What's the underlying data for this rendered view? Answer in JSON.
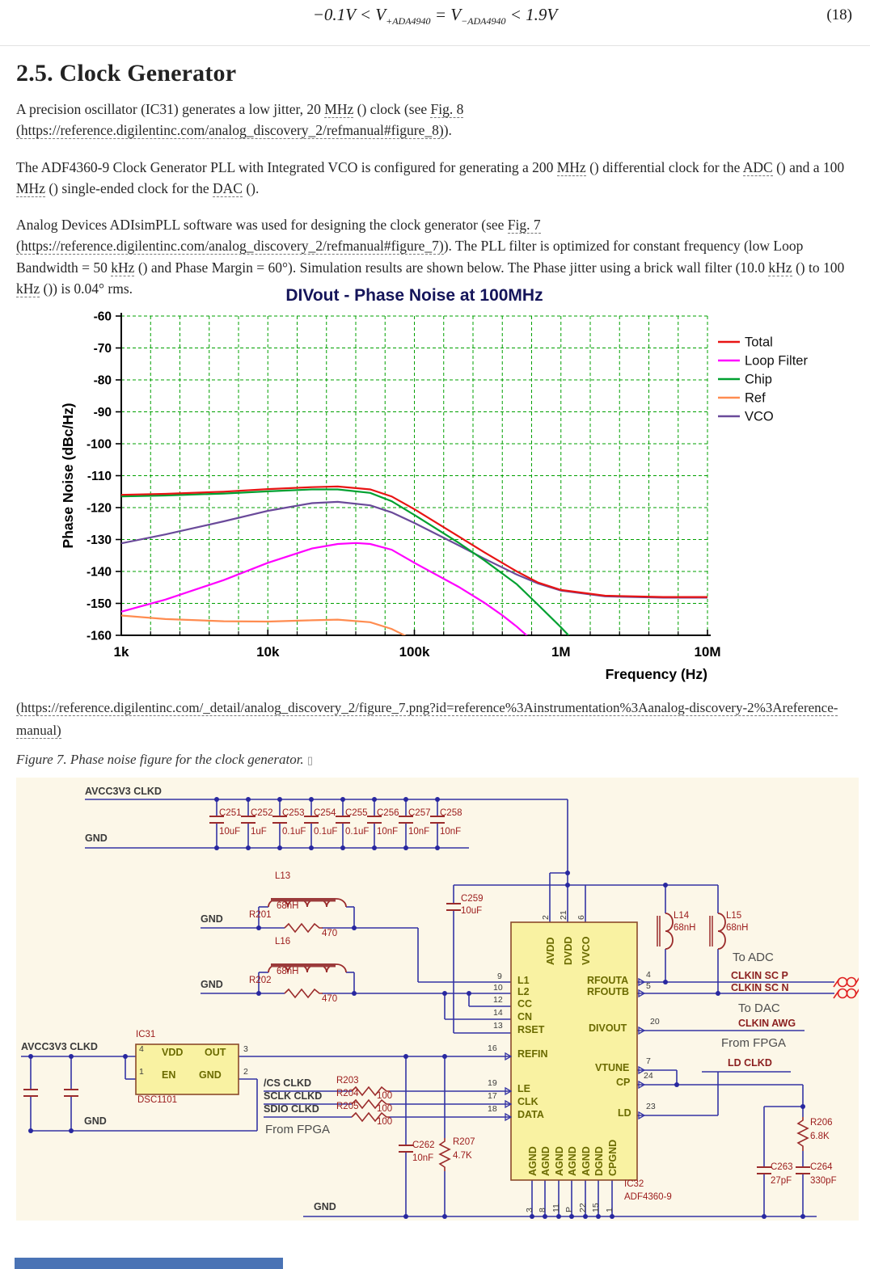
{
  "equation": {
    "parts": [
      {
        "t": "−0.1V < V"
      },
      {
        "t": "+ADA4940",
        "sub": true
      },
      {
        "t": " = V"
      },
      {
        "t": "−ADA4940",
        "sub": true
      },
      {
        "t": " < 1.9V"
      }
    ],
    "number": "(18)"
  },
  "heading": "2.5. Clock Generator",
  "paragraphs": [
    [
      {
        "t": "A precision oscillator (IC31) generates a low jitter, 20 "
      },
      {
        "t": "MHz",
        "s": "term"
      },
      {
        "t": " () clock (see "
      },
      {
        "t": "Fig. 8 (https://reference.digilentinc.com/analog_discovery_2/refmanual#figure_8)",
        "s": "link"
      },
      {
        "t": ")."
      }
    ],
    [
      {
        "t": "The ADF4360-9 Clock Generator PLL with Integrated VCO is configured for generating a 200 "
      },
      {
        "t": "MHz",
        "s": "term"
      },
      {
        "t": " () differential clock for the "
      },
      {
        "t": "ADC",
        "s": "term"
      },
      {
        "t": " () and a 100 "
      },
      {
        "t": "MHz",
        "s": "term"
      },
      {
        "t": " () single-ended clock for the "
      },
      {
        "t": "DAC",
        "s": "term"
      },
      {
        "t": " ()."
      }
    ],
    [
      {
        "t": "Analog Devices ADIsimPLL software was used for designing the clock generator (see "
      },
      {
        "t": "Fig. 7 (https://reference.digilentinc.com/analog_discovery_2/refmanual#figure_7)",
        "s": "link"
      },
      {
        "t": "). The PLL filter is optimized for constant frequency (low Loop Bandwidth = 50 "
      },
      {
        "t": "kHz",
        "s": "term"
      },
      {
        "t": " () and Phase Margin = 60°). Simulation results are shown below. The Phase jitter using a brick wall filter (10.0 "
      },
      {
        "t": "kHz",
        "s": "term"
      },
      {
        "t": " () to 100 "
      },
      {
        "t": "kHz",
        "s": "term"
      },
      {
        "t": " ()) is 0.04° rms."
      }
    ]
  ],
  "chart_data": {
    "type": "line",
    "title": "DIVout - Phase Noise at  100MHz",
    "xlabel": "Frequency (Hz)",
    "ylabel": "Phase Noise (dBc/Hz)",
    "x_scale": "log",
    "xlim": [
      1000,
      10000000
    ],
    "ylim": [
      -160,
      -60
    ],
    "x_ticks": [
      "1k",
      "10k",
      "100k",
      "1M",
      "10M"
    ],
    "y_ticks": [
      "-60",
      "-70",
      "-80",
      "-90",
      "-100",
      "-110",
      "-120",
      "-130",
      "-140",
      "-150",
      "-160"
    ],
    "grid": "green dashed, 5 log subdivisions per decade, 10 dB per horizontal division",
    "legend_position": "right",
    "series": [
      {
        "name": "Total",
        "color": "#e81414",
        "points": [
          [
            1000,
            -116
          ],
          [
            2000,
            -115.7
          ],
          [
            5000,
            -115
          ],
          [
            10000,
            -114.2
          ],
          [
            20000,
            -113.6
          ],
          [
            30000,
            -113.4
          ],
          [
            50000,
            -114.3
          ],
          [
            70000,
            -116.5
          ],
          [
            100000,
            -120.5
          ],
          [
            200000,
            -129
          ],
          [
            300000,
            -134
          ],
          [
            500000,
            -140
          ],
          [
            700000,
            -143.5
          ],
          [
            1000000,
            -145.8
          ],
          [
            2000000,
            -147.6
          ],
          [
            5000000,
            -148
          ],
          [
            10000000,
            -148
          ]
        ]
      },
      {
        "name": "Loop Filter",
        "color": "#ff00ff",
        "points": [
          [
            1000,
            -152.6
          ],
          [
            2000,
            -148.8
          ],
          [
            5000,
            -142.7
          ],
          [
            10000,
            -137.3
          ],
          [
            20000,
            -132.8
          ],
          [
            30000,
            -131.4
          ],
          [
            40000,
            -131.1
          ],
          [
            50000,
            -131.4
          ],
          [
            70000,
            -133.2
          ],
          [
            100000,
            -137.3
          ],
          [
            200000,
            -144.8
          ],
          [
            300000,
            -149.8
          ],
          [
            400000,
            -153.8
          ],
          [
            500000,
            -157.3
          ],
          [
            600000,
            -160.5
          ],
          [
            700000,
            -164
          ]
        ]
      },
      {
        "name": "Chip",
        "color": "#00a030",
        "points": [
          [
            1000,
            -116.5
          ],
          [
            2000,
            -116.2
          ],
          [
            5000,
            -115.6
          ],
          [
            10000,
            -114.9
          ],
          [
            20000,
            -114.3
          ],
          [
            30000,
            -114.3
          ],
          [
            50000,
            -115.4
          ],
          [
            70000,
            -118
          ],
          [
            100000,
            -122.3
          ],
          [
            200000,
            -131
          ],
          [
            300000,
            -136.5
          ],
          [
            500000,
            -144
          ],
          [
            700000,
            -150.5
          ],
          [
            1000000,
            -157.5
          ],
          [
            1300000,
            -163
          ]
        ]
      },
      {
        "name": "Ref",
        "color": "#ff8c50",
        "points": [
          [
            1000,
            -153.8
          ],
          [
            2000,
            -154.9
          ],
          [
            5000,
            -155.6
          ],
          [
            10000,
            -155.7
          ],
          [
            20000,
            -155.3
          ],
          [
            30000,
            -155.1
          ],
          [
            50000,
            -155.9
          ],
          [
            70000,
            -158
          ],
          [
            90000,
            -160.5
          ],
          [
            100000,
            -162
          ]
        ]
      },
      {
        "name": "VCO",
        "color": "#6a4a9a",
        "points": [
          [
            1000,
            -131.2
          ],
          [
            2000,
            -128.4
          ],
          [
            5000,
            -124.3
          ],
          [
            10000,
            -121
          ],
          [
            20000,
            -118.6
          ],
          [
            30000,
            -118.2
          ],
          [
            50000,
            -119.3
          ],
          [
            70000,
            -121.5
          ],
          [
            100000,
            -124.8
          ],
          [
            200000,
            -131.8
          ],
          [
            300000,
            -136
          ],
          [
            500000,
            -141
          ],
          [
            700000,
            -143.8
          ],
          [
            1000000,
            -146
          ],
          [
            2000000,
            -147.8
          ],
          [
            5000000,
            -148.2
          ],
          [
            10000000,
            -148.2
          ]
        ]
      }
    ]
  },
  "figure_link": "(https://reference.digilentinc.com/_detail/analog_discovery_2/figure_7.png?id=reference%3Ainstrumentation%3Aanalog-discovery-2%3Areference-manual)",
  "figure_caption": "Figure 7. Phase noise figure for the clock generator. ",
  "figure_caption_glyph": "▯",
  "schematic": {
    "ic31_part": "DSC1101",
    "ic32_part": "ADF4360-9",
    "labels": [
      [
        "net",
        "AVCC3V3 CLKD",
        85,
        10
      ],
      [
        "net",
        "GND",
        85,
        68
      ],
      [
        "net",
        "GND",
        228,
        168
      ],
      [
        "net",
        "GND",
        228,
        249
      ],
      [
        "net",
        "AVCC3V3 CLKD",
        6,
        326
      ],
      [
        "net",
        "GND",
        84,
        418
      ],
      [
        "net",
        "/CS CLKD",
        306,
        371
      ],
      [
        "net",
        "SCLK CLKD",
        306,
        387
      ],
      [
        "net",
        "SDIO CLKD",
        306,
        403
      ],
      [
        "net",
        "GND",
        368,
        524
      ],
      [
        "netred",
        "CLKIN SC P",
        884,
        238
      ],
      [
        "netred",
        "CLKIN SC N",
        884,
        253
      ],
      [
        "netred",
        "CLKIN AWG",
        893,
        297
      ],
      [
        "netred",
        "LD CLKD",
        880,
        346
      ],
      [
        "note",
        "To ADC",
        886,
        214
      ],
      [
        "note",
        "To DAC",
        893,
        277
      ],
      [
        "note",
        "From FPGA",
        872,
        320
      ],
      [
        "note",
        "From FPGA",
        308,
        427
      ],
      [
        "ref",
        "C251",
        251,
        38
      ],
      [
        "ref",
        "10uF",
        251,
        61
      ],
      [
        "ref",
        "C252",
        290,
        38
      ],
      [
        "ref",
        "1uF",
        290,
        61
      ],
      [
        "ref",
        "C253",
        329,
        38
      ],
      [
        "ref",
        "0.1uF",
        329,
        61
      ],
      [
        "ref",
        "C254",
        368,
        38
      ],
      [
        "ref",
        "0.1uF",
        368,
        61
      ],
      [
        "ref",
        "C255",
        407,
        38
      ],
      [
        "ref",
        "0.1uF",
        407,
        61
      ],
      [
        "ref",
        "C256",
        446,
        38
      ],
      [
        "ref",
        "10nF",
        446,
        61
      ],
      [
        "ref",
        "C257",
        485,
        38
      ],
      [
        "ref",
        "10nF",
        485,
        61
      ],
      [
        "ref",
        "C258",
        524,
        38
      ],
      [
        "ref",
        "10nF",
        524,
        61
      ],
      [
        "ref",
        "C259",
        550,
        144
      ],
      [
        "ref",
        "10uF",
        550,
        159
      ],
      [
        "ref",
        "L13",
        320,
        116
      ],
      [
        "ref",
        "68nH",
        322,
        153
      ],
      [
        "ref",
        "R201",
        288,
        164
      ],
      [
        "ref",
        "470",
        378,
        187
      ],
      [
        "ref",
        "L16",
        320,
        197
      ],
      [
        "ref",
        "68nH",
        322,
        234
      ],
      [
        "ref",
        "R202",
        288,
        245
      ],
      [
        "ref",
        "470",
        378,
        268
      ],
      [
        "ref",
        "R203",
        396,
        369
      ],
      [
        "ref",
        "R204",
        396,
        385
      ],
      [
        "ref",
        "R205",
        396,
        401
      ],
      [
        "ref",
        "100",
        446,
        388
      ],
      [
        "ref",
        "100",
        446,
        404
      ],
      [
        "ref",
        "100",
        446,
        420
      ],
      [
        "ref",
        "C262",
        490,
        449
      ],
      [
        "ref",
        "10nF",
        490,
        465
      ],
      [
        "ref",
        "R207",
        540,
        445
      ],
      [
        "ref",
        "4.7K",
        540,
        462
      ],
      [
        "ref",
        "L14",
        813,
        165
      ],
      [
        "ref",
        "68nH",
        813,
        180
      ],
      [
        "ref",
        "L15",
        878,
        165
      ],
      [
        "ref",
        "68nH",
        878,
        180
      ],
      [
        "ref",
        "R206",
        982,
        421
      ],
      [
        "ref",
        "6.8K",
        982,
        438
      ],
      [
        "ref",
        "C263",
        933,
        476
      ],
      [
        "ref",
        "27pF",
        933,
        493
      ],
      [
        "ref",
        "C264",
        982,
        476
      ],
      [
        "ref",
        "330pF",
        982,
        493
      ],
      [
        "ref",
        "IC31",
        148,
        312
      ],
      [
        "ref",
        "DSC1101",
        150,
        393
      ],
      [
        "ref",
        "IC32",
        752,
        497
      ],
      [
        "ref",
        "ADF4360-9",
        752,
        513
      ],
      [
        "ic",
        "VDD",
        180,
        333
      ],
      [
        "ic",
        "OUT",
        233,
        333
      ],
      [
        "ic",
        "EN",
        180,
        361
      ],
      [
        "ic",
        "GND",
        226,
        361
      ],
      [
        "ic",
        "L1",
        620,
        244
      ],
      [
        "ic",
        "L2",
        620,
        258
      ],
      [
        "ic",
        "CC",
        620,
        273
      ],
      [
        "ic",
        "CN",
        620,
        289
      ],
      [
        "ic",
        "RSET",
        620,
        305
      ],
      [
        "ic",
        "REFIN",
        620,
        335
      ],
      [
        "ic",
        "LE",
        620,
        378
      ],
      [
        "ic",
        "CLK",
        620,
        394
      ],
      [
        "ic",
        "DATA",
        620,
        410
      ],
      [
        "ic",
        "RFOUTA",
        706,
        244
      ],
      [
        "ic",
        "RFOUTB",
        706,
        258
      ],
      [
        "ic",
        "DIVOUT",
        708,
        303
      ],
      [
        "ic",
        "VTUNE",
        716,
        352
      ],
      [
        "ic",
        "CP",
        742,
        370
      ],
      [
        "ic",
        "LD",
        744,
        408
      ],
      [
        "icr",
        "AVDD",
        654,
        232
      ],
      [
        "icr",
        "DVDD",
        676,
        232
      ],
      [
        "icr",
        "VVCO",
        698,
        232
      ],
      [
        "icr",
        "AGND",
        632,
        493
      ],
      [
        "icr",
        "AGND",
        648,
        493
      ],
      [
        "icr",
        "AGND",
        665,
        493
      ],
      [
        "icr",
        "AGND",
        681,
        493
      ],
      [
        "icr",
        "AGND",
        698,
        493
      ],
      [
        "icr",
        "DGND",
        714,
        493
      ],
      [
        "icr",
        "CPGND",
        731,
        493
      ],
      [
        "pin",
        "4",
        152,
        330
      ],
      [
        "pin",
        "1",
        152,
        358
      ],
      [
        "pin",
        "3",
        281,
        330
      ],
      [
        "pin",
        "2",
        281,
        358
      ],
      [
        "pin",
        "9",
        595,
        240
      ],
      [
        "pin",
        "10",
        590,
        254
      ],
      [
        "pin",
        "12",
        590,
        269
      ],
      [
        "pin",
        "14",
        590,
        285
      ],
      [
        "pin",
        "13",
        590,
        301
      ],
      [
        "pin",
        "16",
        583,
        329
      ],
      [
        "pin",
        "19",
        583,
        372
      ],
      [
        "pin",
        "17",
        583,
        388
      ],
      [
        "pin",
        "18",
        583,
        404
      ],
      [
        "pinr",
        "2",
        649,
        176
      ],
      [
        "pinr",
        "21",
        671,
        176
      ],
      [
        "pinr",
        "6",
        693,
        176
      ],
      [
        "pin",
        "4",
        779,
        238
      ],
      [
        "pin",
        "5",
        779,
        252
      ],
      [
        "pin",
        "20",
        784,
        296
      ],
      [
        "pin",
        "7",
        779,
        345
      ],
      [
        "pin",
        "24",
        776,
        363
      ],
      [
        "pin",
        "23",
        779,
        401
      ],
      [
        "pinr",
        "3",
        629,
        538
      ],
      [
        "pinr",
        "8",
        645,
        538
      ],
      [
        "pinr",
        "11",
        662,
        538
      ],
      [
        "pinr",
        "P",
        678,
        538
      ],
      [
        "pinr",
        "22",
        695,
        538
      ],
      [
        "pinr",
        "15",
        711,
        538
      ],
      [
        "pinr",
        "1",
        728,
        538
      ]
    ]
  },
  "colors": {
    "wire": "#3434a4",
    "component": "#9b2b2b",
    "ic_fill": "#f9f2a2",
    "ic_border": "#8b4a2b",
    "schematic_bg": "#fcf7e8",
    "grid_green": "#00a000",
    "connector_red": "#e02020"
  }
}
